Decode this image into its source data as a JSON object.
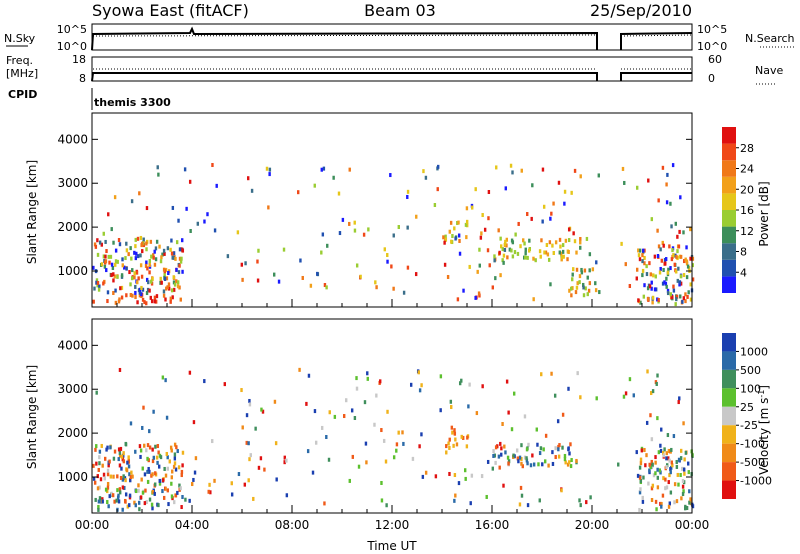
{
  "header": {
    "title": "Syowa East (fitACF)",
    "beam": "Beam 03",
    "date": "25/Sep/2010"
  },
  "panels": {
    "nsky": {
      "left_label": "N.Sky",
      "left_ticks": [
        "10^5",
        "10^0"
      ],
      "right_label": "N.Search",
      "right_ticks": [
        "10^5",
        "10^0"
      ]
    },
    "freq": {
      "left_label_lines": [
        "Freq.",
        "[MHz]"
      ],
      "left_ticks": [
        "18",
        "8"
      ],
      "right_label": "Nave",
      "right_ticks": [
        "60",
        "0"
      ]
    },
    "cpid": {
      "label": "CPID",
      "value": "themis 3300"
    }
  },
  "chart_data": [
    {
      "type": "heatmap",
      "name": "power",
      "xlabel": "Time UT",
      "ylabel": "Slant Range [km]",
      "x_ticks": [
        "00:00",
        "04:00",
        "08:00",
        "12:00",
        "16:00",
        "20:00",
        "00:00"
      ],
      "x_range_hours": [
        0,
        24
      ],
      "y_ticks": [
        1000,
        2000,
        3000,
        4000
      ],
      "ylim": [
        180,
        4600
      ],
      "colorbar": {
        "label": "Power [dB]",
        "ticks": [
          "4",
          "8",
          "12",
          "16",
          "20",
          "24",
          "28"
        ],
        "range": [
          0,
          32
        ],
        "colors": [
          "#1a1aff",
          "#2050b0",
          "#3a6e8a",
          "#3c8e5a",
          "#9acd32",
          "#e6c619",
          "#f2a01a",
          "#f07818",
          "#f04818",
          "#e01010"
        ]
      },
      "data_gaps_hours": [
        [
          20.25,
          21.0
        ]
      ],
      "echo_regions": [
        {
          "t0": 0.0,
          "t1": 3.6,
          "r0": 200,
          "r1": 420,
          "level": "high"
        },
        {
          "t0": 0.0,
          "t1": 3.6,
          "r0": 420,
          "r1": 1700,
          "level": "mixed"
        },
        {
          "t0": 14.0,
          "t1": 15.0,
          "r0": 1600,
          "r1": 2100,
          "level": "mid"
        },
        {
          "t0": 16.0,
          "t1": 19.5,
          "r0": 1200,
          "r1": 1700,
          "level": "mid"
        },
        {
          "t0": 19.0,
          "t1": 20.2,
          "r0": 400,
          "r1": 1000,
          "level": "mid"
        },
        {
          "t0": 21.8,
          "t1": 24.0,
          "r0": 200,
          "r1": 1600,
          "level": "mixed"
        }
      ]
    },
    {
      "type": "heatmap",
      "name": "velocity",
      "xlabel": "Time UT",
      "ylabel": "Slant Range [km]",
      "x_ticks": [
        "00:00",
        "04:00",
        "08:00",
        "12:00",
        "16:00",
        "20:00",
        "00:00"
      ],
      "x_range_hours": [
        0,
        24
      ],
      "y_ticks": [
        1000,
        2000,
        3000,
        4000
      ],
      "ylim": [
        180,
        4600
      ],
      "colorbar": {
        "label": "Velocity [m s^-1]",
        "ticks": [
          "1000",
          "500",
          "100",
          "25",
          "-25",
          "-100",
          "-500",
          "-1000"
        ],
        "colors": [
          "#1a3fb0",
          "#2a6aa8",
          "#3f8f5c",
          "#5cc02e",
          "#c8c8c8",
          "#f0b21a",
          "#f08a18",
          "#f05a18",
          "#e01010"
        ]
      },
      "data_gaps_hours": [
        [
          20.25,
          21.0
        ]
      ],
      "echo_regions": [
        {
          "t0": 0.0,
          "t1": 3.6,
          "r0": 200,
          "r1": 1700,
          "level": "mixed"
        },
        {
          "t0": 14.0,
          "t1": 15.0,
          "r0": 1600,
          "r1": 2100,
          "level": "away"
        },
        {
          "t0": 16.0,
          "t1": 19.5,
          "r0": 1200,
          "r1": 1700,
          "level": "mixed"
        },
        {
          "t0": 21.8,
          "t1": 24.0,
          "r0": 200,
          "r1": 1600,
          "level": "mixed"
        }
      ]
    }
  ]
}
